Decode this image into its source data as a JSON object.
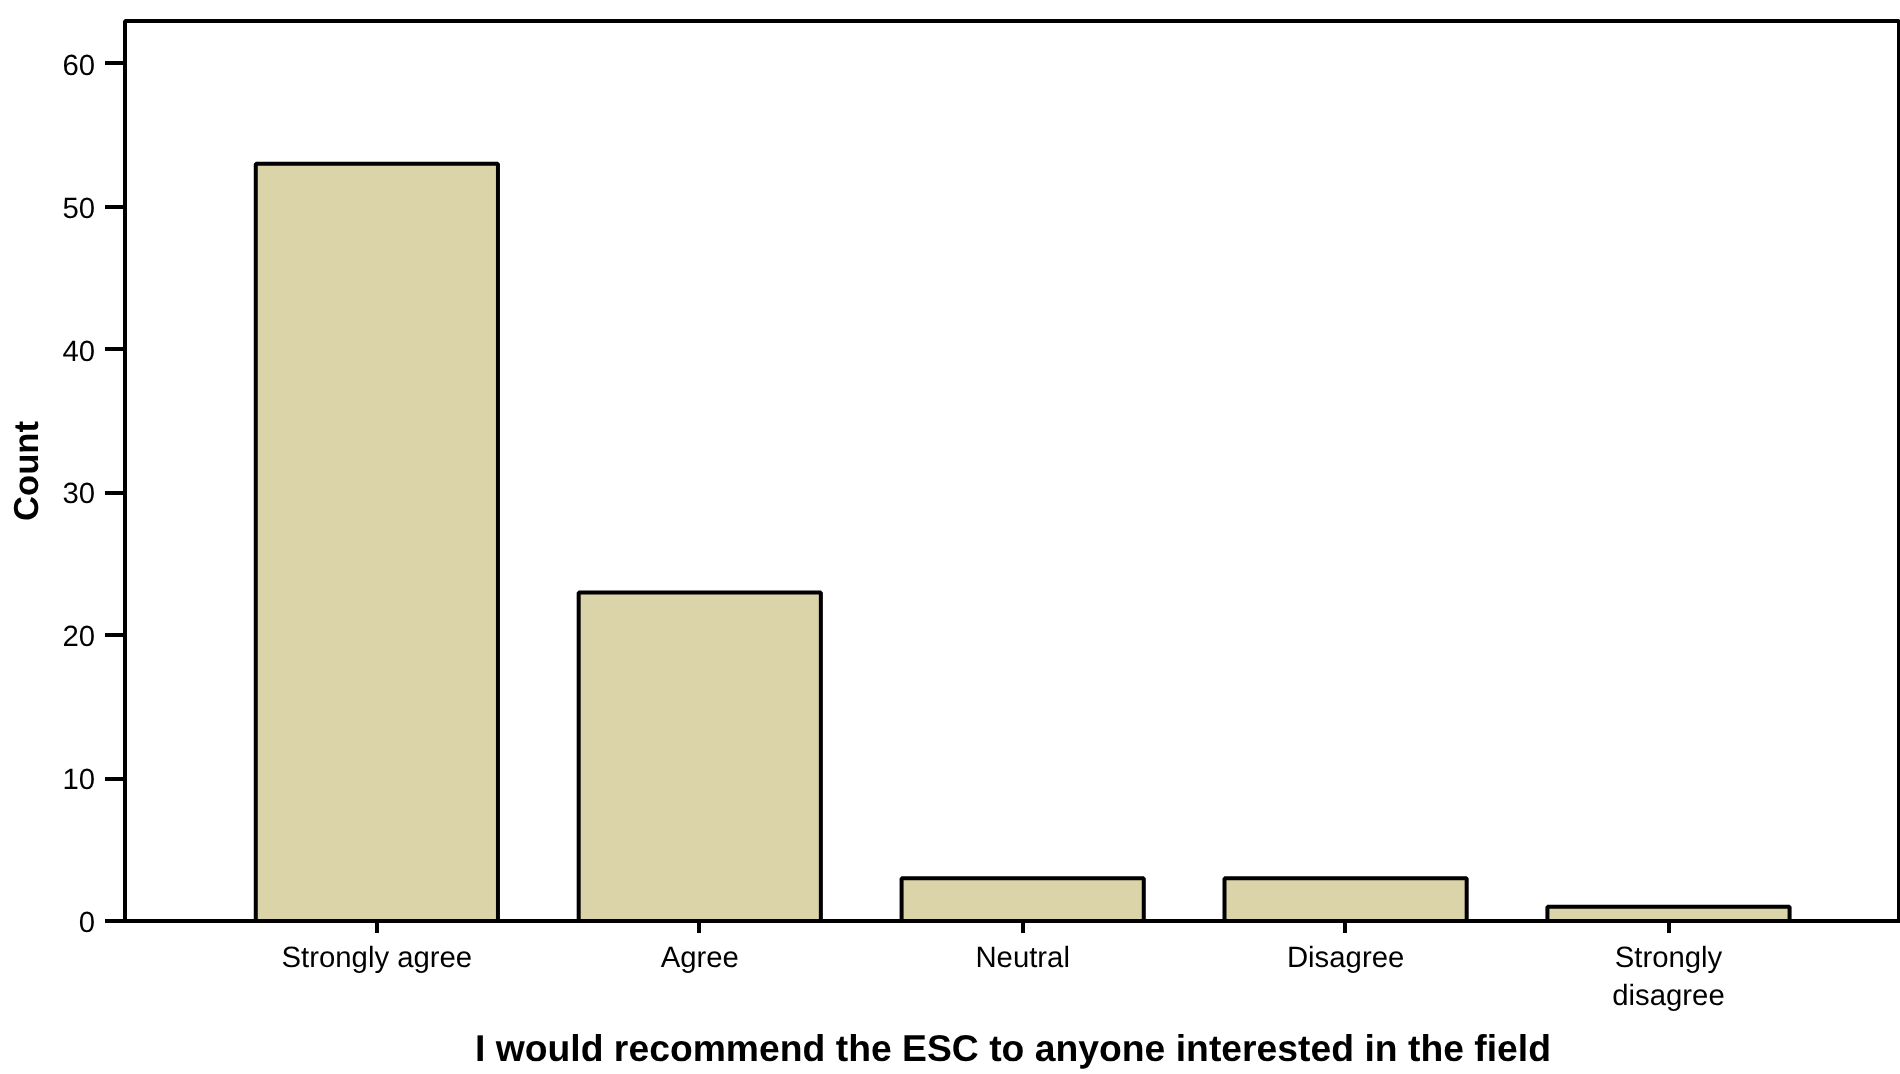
{
  "chart_data": {
    "type": "bar",
    "xlabel": "I would recommend the ESC to anyone interested in the field",
    "ylabel": "Count",
    "categories": [
      "Strongly agree",
      "Agree",
      "Neutral",
      "Disagree",
      "Strongly disagree"
    ],
    "values": [
      53,
      23,
      3,
      3,
      1
    ],
    "color": "#dbd4a8",
    "ylim": [
      0,
      63
    ],
    "yticks": [
      0,
      10,
      20,
      30,
      40,
      50,
      60
    ],
    "grid": false
  }
}
